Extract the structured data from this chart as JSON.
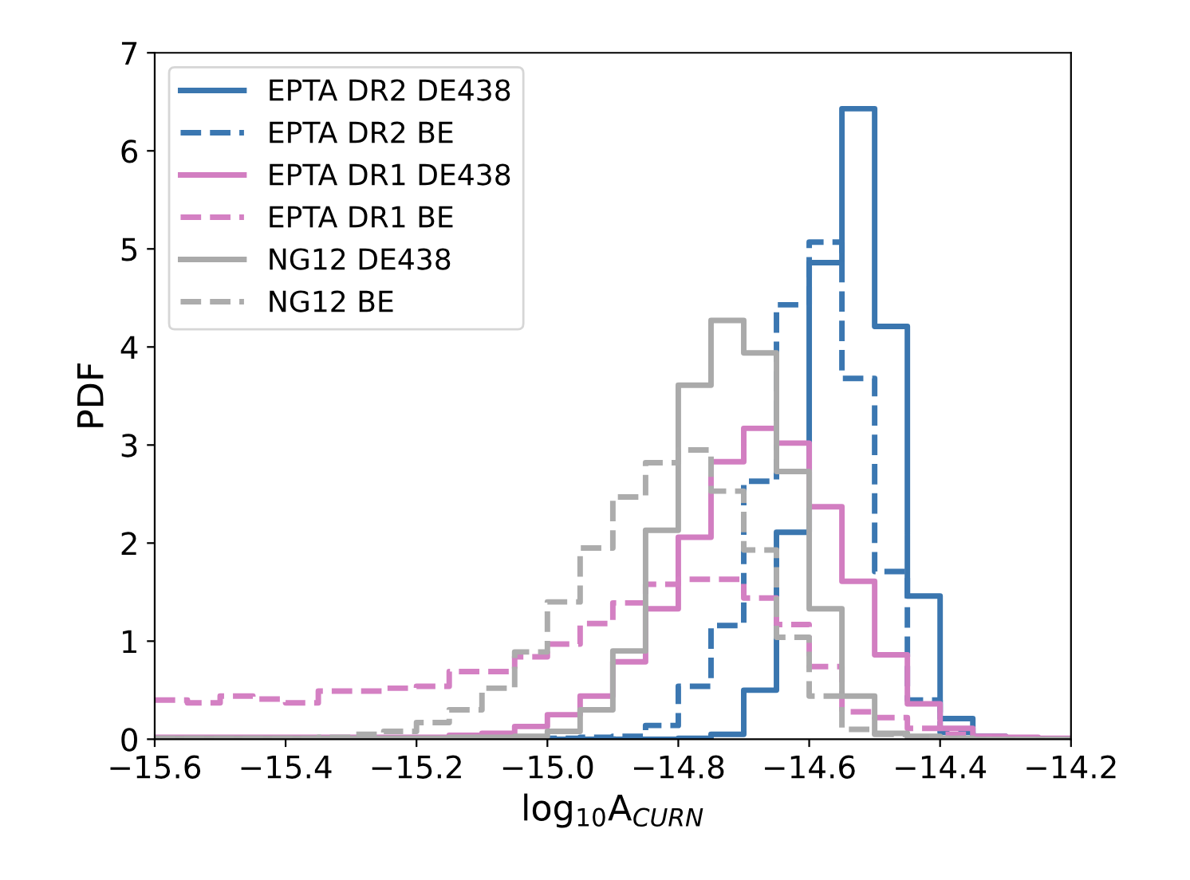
{
  "chart_data": {
    "type": "histogram",
    "xlabel": "log$_{10}$A$_{CURN}$",
    "ylabel": "PDF",
    "bins": [
      -15.6,
      -15.55,
      -15.5,
      -15.45,
      -15.4,
      -15.35,
      -15.3,
      -15.25,
      -15.2,
      -15.15,
      -15.1,
      -15.05,
      -15.0,
      -14.95,
      -14.9,
      -14.85,
      -14.8,
      -14.75,
      -14.7,
      -14.65,
      -14.6,
      -14.55,
      -14.5,
      -14.45,
      -14.4,
      -14.35,
      -14.3,
      -14.25,
      -14.2
    ],
    "series": [
      {
        "name": "EPTA DR2 DE438",
        "color": "#3a76af",
        "line_style": "solid",
        "values": [
          0,
          0,
          0,
          0,
          0,
          0,
          0,
          0,
          0,
          0,
          0,
          0,
          0,
          0,
          0,
          0,
          0.01,
          0.05,
          0.5,
          2.11,
          4.86,
          6.43,
          4.21,
          1.46,
          0.21,
          0.03,
          0.01,
          0
        ]
      },
      {
        "name": "EPTA DR2 BE",
        "color": "#3b77b1",
        "line_style": "dashed",
        "values": [
          0.01,
          0.01,
          0.01,
          0.01,
          0.01,
          0.01,
          0.01,
          0.01,
          0.01,
          0.01,
          0.01,
          0.01,
          0.01,
          0.02,
          0.03,
          0.14,
          0.54,
          1.16,
          2.63,
          4.43,
          5.07,
          3.68,
          1.71,
          0.4,
          0.07,
          0.01,
          0,
          0
        ]
      },
      {
        "name": "EPTA DR1 DE438",
        "color": "#d27ec1",
        "line_style": "solid",
        "values": [
          0.02,
          0.02,
          0.02,
          0.02,
          0.02,
          0.02,
          0.02,
          0.02,
          0.02,
          0.04,
          0.06,
          0.13,
          0.25,
          0.44,
          0.79,
          1.33,
          2.06,
          2.83,
          3.17,
          3.02,
          2.37,
          1.61,
          0.86,
          0.36,
          0.11,
          0.03,
          0.02,
          0.01
        ]
      },
      {
        "name": "EPTA DR1 BE",
        "color": "#d480c3",
        "line_style": "dashed",
        "values": [
          0.4,
          0.37,
          0.44,
          0.41,
          0.37,
          0.49,
          0.49,
          0.52,
          0.54,
          0.69,
          0.69,
          0.84,
          0.97,
          1.18,
          1.39,
          1.58,
          1.63,
          1.63,
          1.44,
          1.17,
          0.74,
          0.28,
          0.22,
          0.11,
          0.05,
          0.02,
          0.01,
          0
        ]
      },
      {
        "name": "NG12 DE438",
        "color": "#aaaaaa",
        "line_style": "solid",
        "values": [
          0.01,
          0.01,
          0.01,
          0.01,
          0.01,
          0.01,
          0.01,
          0.01,
          0.01,
          0.02,
          0.02,
          0.03,
          0.08,
          0.3,
          0.9,
          2.13,
          3.61,
          4.27,
          3.94,
          2.73,
          1.33,
          0.44,
          0.06,
          0.03,
          0.01,
          0,
          0,
          0
        ]
      },
      {
        "name": "NG12 BE",
        "color": "#acacac",
        "line_style": "dashed",
        "values": [
          0.01,
          0.01,
          0.01,
          0.01,
          0.01,
          0.02,
          0.05,
          0.08,
          0.17,
          0.3,
          0.52,
          0.89,
          1.4,
          1.95,
          2.47,
          2.82,
          2.95,
          2.53,
          1.93,
          1.04,
          0.44,
          0.1,
          0.05,
          0.02,
          0.01,
          0,
          0,
          0
        ]
      }
    ],
    "xlim": [
      -15.6,
      -14.2
    ],
    "xticks": [
      {
        "value": -15.6,
        "label": "−15.6"
      },
      {
        "value": -15.4,
        "label": "−15.4"
      },
      {
        "value": -15.2,
        "label": "−15.2"
      },
      {
        "value": -15.0,
        "label": "−15.0"
      },
      {
        "value": -14.8,
        "label": "−14.8"
      },
      {
        "value": -14.6,
        "label": "−14.6"
      },
      {
        "value": -14.4,
        "label": "−14.4"
      },
      {
        "value": -14.2,
        "label": "−14.2"
      }
    ],
    "ylim": [
      0,
      7
    ],
    "yticks": [
      0,
      1,
      2,
      3,
      4,
      5,
      6,
      7
    ],
    "legend": "top left",
    "grid": false
  }
}
